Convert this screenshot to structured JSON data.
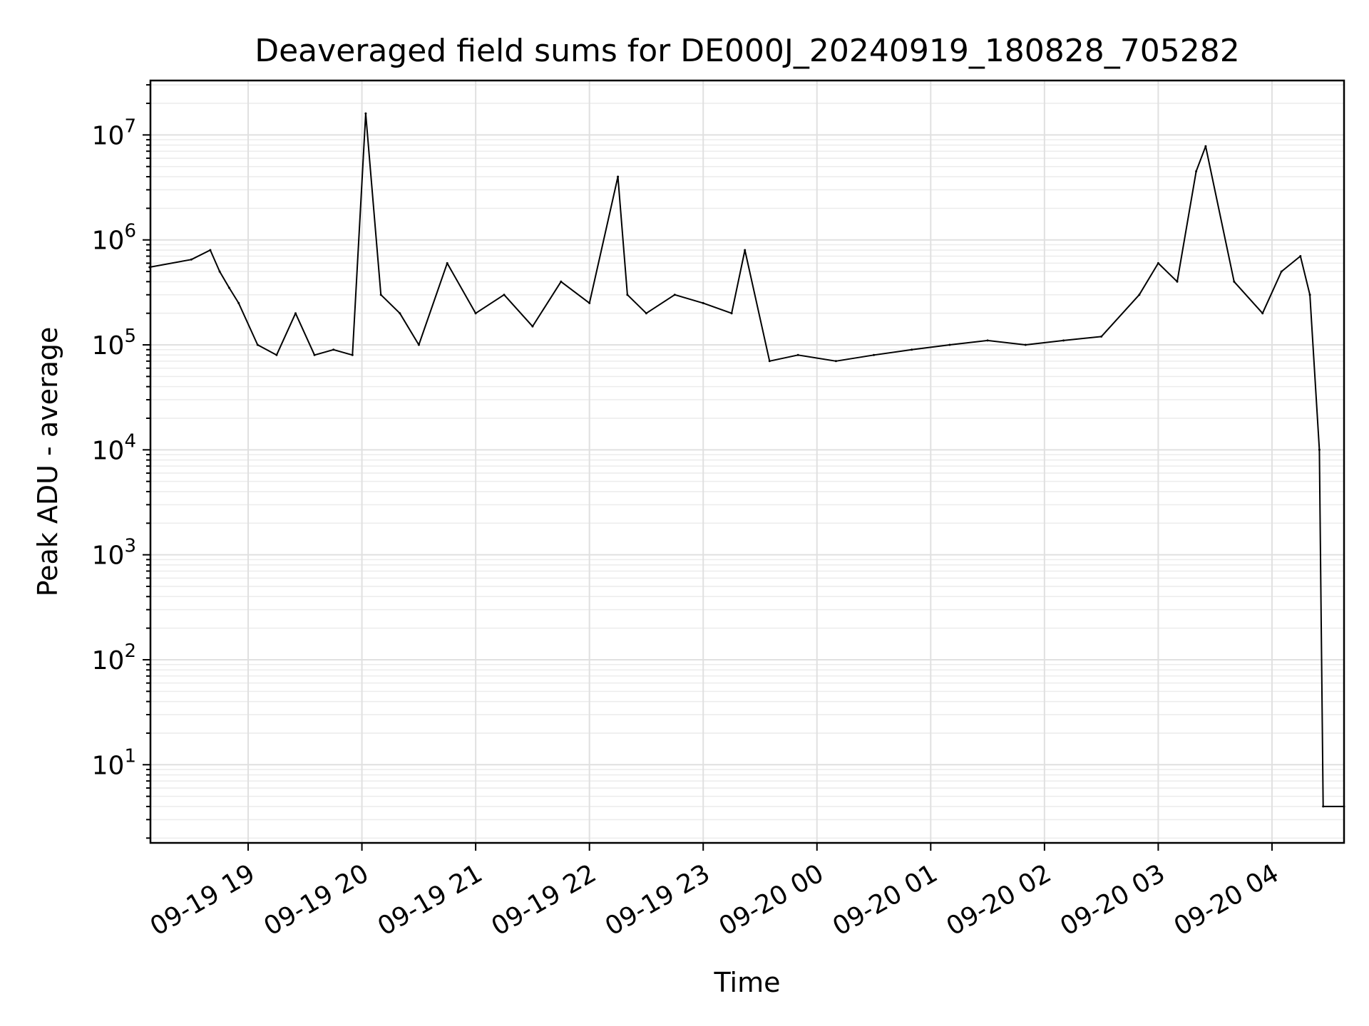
{
  "chart_data": {
    "type": "line",
    "title": "Deaveraged field sums for DE000J_20240919_180828_705282",
    "xlabel": "Time",
    "ylabel": "Peak ADU - average",
    "yscale": "log",
    "ylim": [
      1.8,
      33000000
    ],
    "xlim": [
      "2024-09-19 18:08:28",
      "2024-09-20 04:38:00"
    ],
    "grid": "on (major and minor)",
    "line_color": "#000000",
    "x_tick_labels": [
      "09-19 19",
      "09-19 20",
      "09-19 21",
      "09-19 22",
      "09-19 23",
      "09-20 00",
      "09-20 01",
      "09-20 02",
      "09-20 03",
      "09-20 04"
    ],
    "x_tick_values": [
      "2024-09-19 19:00",
      "2024-09-19 20:00",
      "2024-09-19 21:00",
      "2024-09-19 22:00",
      "2024-09-19 23:00",
      "2024-09-20 00:00",
      "2024-09-20 01:00",
      "2024-09-20 02:00",
      "2024-09-20 03:00",
      "2024-09-20 04:00"
    ],
    "y_ticks": [
      {
        "value": 10,
        "base": "10",
        "exp": "1"
      },
      {
        "value": 100,
        "base": "10",
        "exp": "2"
      },
      {
        "value": 1000,
        "base": "10",
        "exp": "3"
      },
      {
        "value": 10000,
        "base": "10",
        "exp": "4"
      },
      {
        "value": 100000,
        "base": "10",
        "exp": "5"
      },
      {
        "value": 1000000,
        "base": "10",
        "exp": "6"
      },
      {
        "value": 10000000,
        "base": "10",
        "exp": "7"
      }
    ],
    "series": [
      {
        "x": [
          "2024-09-19 18:08",
          "2024-09-19 18:30",
          "2024-09-19 18:40",
          "2024-09-19 18:45",
          "2024-09-19 18:50",
          "2024-09-19 18:55",
          "2024-09-19 19:05",
          "2024-09-19 19:15",
          "2024-09-19 19:25",
          "2024-09-19 19:35",
          "2024-09-19 19:45",
          "2024-09-19 19:55",
          "2024-09-19 20:02",
          "2024-09-19 20:10",
          "2024-09-19 20:20",
          "2024-09-19 20:30",
          "2024-09-19 20:45",
          "2024-09-19 21:00",
          "2024-09-19 21:15",
          "2024-09-19 21:30",
          "2024-09-19 21:45",
          "2024-09-19 22:00",
          "2024-09-19 22:15",
          "2024-09-19 22:20",
          "2024-09-19 22:30",
          "2024-09-19 22:45",
          "2024-09-19 23:00",
          "2024-09-19 23:15",
          "2024-09-19 23:22",
          "2024-09-19 23:35",
          "2024-09-19 23:50",
          "2024-09-20 00:10",
          "2024-09-20 00:30",
          "2024-09-20 00:50",
          "2024-09-20 01:10",
          "2024-09-20 01:30",
          "2024-09-20 01:50",
          "2024-09-20 02:10",
          "2024-09-20 02:30",
          "2024-09-20 02:50",
          "2024-09-20 03:00",
          "2024-09-20 03:10",
          "2024-09-20 03:20",
          "2024-09-20 03:25",
          "2024-09-20 03:40",
          "2024-09-20 03:55",
          "2024-09-20 04:05",
          "2024-09-20 04:15",
          "2024-09-20 04:20",
          "2024-09-20 04:25",
          "2024-09-20 04:27",
          "2024-09-20 04:38"
        ],
        "y": [
          550000,
          650000,
          800000,
          500000,
          350000,
          250000,
          100000,
          80000,
          200000,
          80000,
          90000,
          80000,
          16000000,
          300000,
          200000,
          100000,
          600000,
          200000,
          300000,
          150000,
          400000,
          250000,
          4000000,
          300000,
          200000,
          300000,
          250000,
          200000,
          800000,
          70000,
          80000,
          70000,
          80000,
          90000,
          100000,
          110000,
          100000,
          110000,
          120000,
          300000,
          600000,
          400000,
          4500000,
          7800000,
          400000,
          200000,
          500000,
          700000,
          300000,
          10000,
          4,
          4
        ]
      }
    ]
  }
}
